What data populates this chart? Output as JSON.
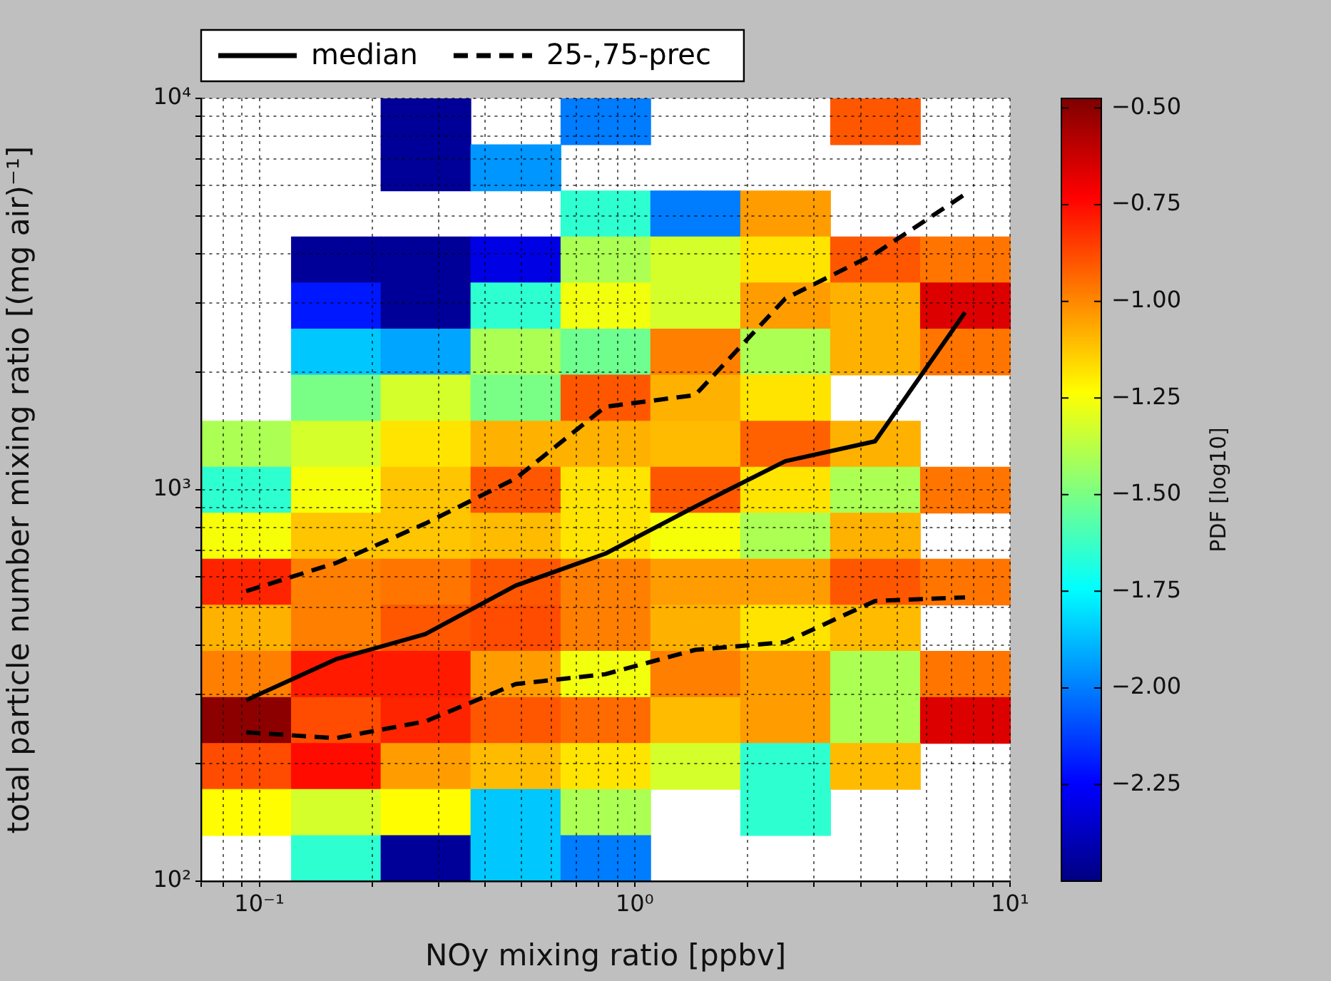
{
  "chart_data": {
    "type": "heatmap",
    "xlabel": "NOy mixing ratio [ppbv]",
    "ylabel": "total particle number mixing ratio [(mg air)⁻¹]",
    "clabel": "PDF [log10]",
    "log": "xy",
    "grid": true,
    "legend": "top left",
    "xlim": [
      0.07,
      10
    ],
    "ylim": [
      100,
      10000
    ],
    "xticks": [
      {
        "value": 0.07,
        "label": null
      },
      {
        "value": 0.08,
        "label": null
      },
      {
        "value": 0.09,
        "label": null
      },
      {
        "value": 0.1,
        "label": "10⁻¹"
      },
      {
        "value": 0.2,
        "label": null
      },
      {
        "value": 0.3,
        "label": null
      },
      {
        "value": 0.4,
        "label": null
      },
      {
        "value": 0.5,
        "label": null
      },
      {
        "value": 0.6,
        "label": null
      },
      {
        "value": 0.7,
        "label": null
      },
      {
        "value": 0.8,
        "label": null
      },
      {
        "value": 0.9,
        "label": null
      },
      {
        "value": 1,
        "label": "10⁰"
      },
      {
        "value": 2,
        "label": null
      },
      {
        "value": 3,
        "label": null
      },
      {
        "value": 4,
        "label": null
      },
      {
        "value": 5,
        "label": null
      },
      {
        "value": 6,
        "label": null
      },
      {
        "value": 7,
        "label": null
      },
      {
        "value": 8,
        "label": null
      },
      {
        "value": 9,
        "label": null
      },
      {
        "value": 10,
        "label": "10¹"
      }
    ],
    "yticks": [
      {
        "value": 100,
        "label": "10²"
      },
      {
        "value": 200,
        "label": null
      },
      {
        "value": 300,
        "label": null
      },
      {
        "value": 400,
        "label": null
      },
      {
        "value": 500,
        "label": null
      },
      {
        "value": 600,
        "label": null
      },
      {
        "value": 700,
        "label": null
      },
      {
        "value": 800,
        "label": null
      },
      {
        "value": 900,
        "label": null
      },
      {
        "value": 1000,
        "label": "10³"
      },
      {
        "value": 2000,
        "label": null
      },
      {
        "value": 3000,
        "label": null
      },
      {
        "value": 4000,
        "label": null
      },
      {
        "value": 5000,
        "label": null
      },
      {
        "value": 6000,
        "label": null
      },
      {
        "value": 7000,
        "label": null
      },
      {
        "value": 8000,
        "label": null
      },
      {
        "value": 9000,
        "label": null
      },
      {
        "value": 10000,
        "label": "10⁴"
      }
    ],
    "clim": [
      -2.5,
      -0.475
    ],
    "cticks": [
      {
        "value": -0.5,
        "label": "−0.50"
      },
      {
        "value": -0.75,
        "label": "−0.75"
      },
      {
        "value": -1,
        "label": "−1.00"
      },
      {
        "value": -1.25,
        "label": "−1.25"
      },
      {
        "value": -1.5,
        "label": "−1.50"
      },
      {
        "value": -1.75,
        "label": "−1.75"
      },
      {
        "value": -2,
        "label": "−2.00"
      },
      {
        "value": -2.25,
        "label": "−2.25"
      }
    ],
    "x": [
      0.0923,
      0.16,
      0.277,
      0.482,
      0.836,
      1.45,
      2.52,
      4.37,
      7.59
    ],
    "y": [
      8733,
      6660,
      5080,
      3875,
      2955,
      2254,
      1719,
      1311,
      1000,
      763,
      582,
      444,
      338,
      258,
      197,
      150,
      114.5
    ],
    "cells": [
      [
        null,
        null,
        -2.45,
        null,
        -2.0,
        null,
        null,
        -0.9,
        null
      ],
      [
        null,
        null,
        -2.45,
        -1.95,
        null,
        null,
        null,
        null,
        null
      ],
      [
        null,
        null,
        null,
        null,
        -1.65,
        -2.0,
        -1.04,
        null,
        null
      ],
      [
        null,
        -2.45,
        -2.45,
        -2.3,
        -1.4,
        -1.32,
        -1.18,
        -0.9,
        -0.96
      ],
      [
        null,
        -2.2,
        -2.45,
        -1.65,
        -1.26,
        -1.32,
        -1.04,
        -1.08,
        -0.66
      ],
      [
        null,
        -1.85,
        -1.92,
        -1.4,
        -1.52,
        -0.98,
        -1.4,
        -1.08,
        -0.96
      ],
      [
        null,
        -1.5,
        -1.32,
        -1.5,
        -0.9,
        -1.08,
        -1.18,
        null,
        null
      ],
      [
        -1.4,
        -1.32,
        -1.18,
        -1.08,
        -1.08,
        -1.1,
        -0.92,
        -1.08,
        null
      ],
      [
        -1.65,
        -1.25,
        -1.12,
        -0.9,
        -1.18,
        -0.9,
        -1.18,
        -1.4,
        -0.96
      ],
      [
        -1.25,
        -1.12,
        -1.12,
        -1.1,
        -1.18,
        -1.25,
        -1.4,
        -1.08,
        null
      ],
      [
        -0.8,
        -0.98,
        -0.96,
        -0.9,
        -0.98,
        -1.04,
        -1.04,
        -0.9,
        -0.96
      ],
      [
        -1.08,
        -0.98,
        -0.9,
        -0.88,
        -0.98,
        -1.08,
        -1.18,
        -1.1,
        null
      ],
      [
        -0.98,
        -0.78,
        -0.78,
        -1.04,
        -1.26,
        -0.98,
        -1.04,
        -1.4,
        -0.96
      ],
      [
        -0.5,
        -0.88,
        -0.8,
        -0.9,
        -0.94,
        -1.1,
        -1.04,
        -1.4,
        -0.66
      ],
      [
        -0.88,
        -0.75,
        -1.04,
        -1.1,
        -1.18,
        -1.32,
        -1.65,
        -1.1,
        null
      ],
      [
        -1.23,
        -1.32,
        -1.23,
        -1.85,
        -1.4,
        null,
        -1.65,
        null,
        null
      ],
      [
        null,
        -1.65,
        -2.45,
        -1.85,
        -2.0,
        null,
        null,
        null,
        null
      ]
    ],
    "series": [
      {
        "name": "median",
        "type": "line",
        "color": "#000000",
        "line_style": "solid",
        "marker": "none",
        "x": [
          0.0923,
          0.16,
          0.277,
          0.482,
          0.836,
          1.45,
          2.52,
          4.37,
          7.59
        ],
        "values": [
          290,
          369,
          428,
          569,
          687,
          906,
          1183,
          1330,
          2840
        ]
      },
      {
        "name": "25-,75-prec",
        "type": "line",
        "color": "#000000",
        "line_style": "dashed",
        "marker": "none",
        "x": [
          0.0923,
          0.16,
          0.277,
          0.482,
          0.836,
          1.45,
          2.52,
          4.37,
          7.59
        ],
        "values": [
          240,
          232,
          256,
          319,
          338,
          390,
          408,
          520,
          531
        ]
      },
      {
        "type": "line",
        "color": "#000000",
        "line_style": "dashed",
        "marker": "none",
        "x": [
          0.0923,
          0.16,
          0.277,
          0.482,
          0.836,
          1.45,
          2.52,
          4.37,
          7.59
        ],
        "values": [
          551,
          650,
          820,
          1069,
          1630,
          1746,
          3080,
          4010,
          5690
        ]
      }
    ]
  }
}
